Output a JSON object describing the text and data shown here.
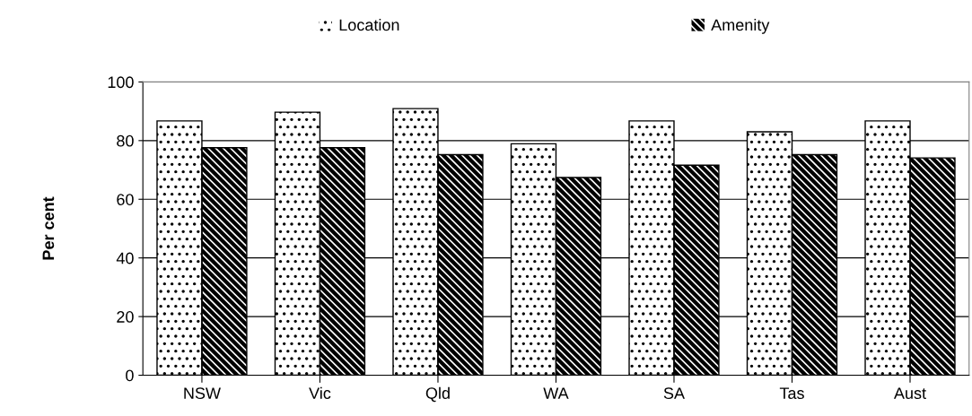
{
  "chart_data": {
    "type": "bar",
    "ylabel": "Per cent",
    "categories": [
      "NSW",
      "Vic",
      "Qld",
      "WA",
      "SA",
      "Tas",
      "Aust"
    ],
    "series": [
      {
        "name": "Location",
        "color": "#ffffff",
        "values": [
          86.7,
          89.7,
          90.9,
          78.9,
          86.7,
          83.0,
          86.7
        ]
      },
      {
        "name": "Amenity",
        "color": "#000000",
        "values": [
          77.6,
          77.6,
          75.2,
          67.4,
          71.6,
          75.2,
          74.1
        ]
      }
    ],
    "ylim": [
      0,
      100
    ],
    "yticks": [
      0,
      20,
      40,
      60,
      80,
      100
    ],
    "grid": "y",
    "legend": "top"
  }
}
